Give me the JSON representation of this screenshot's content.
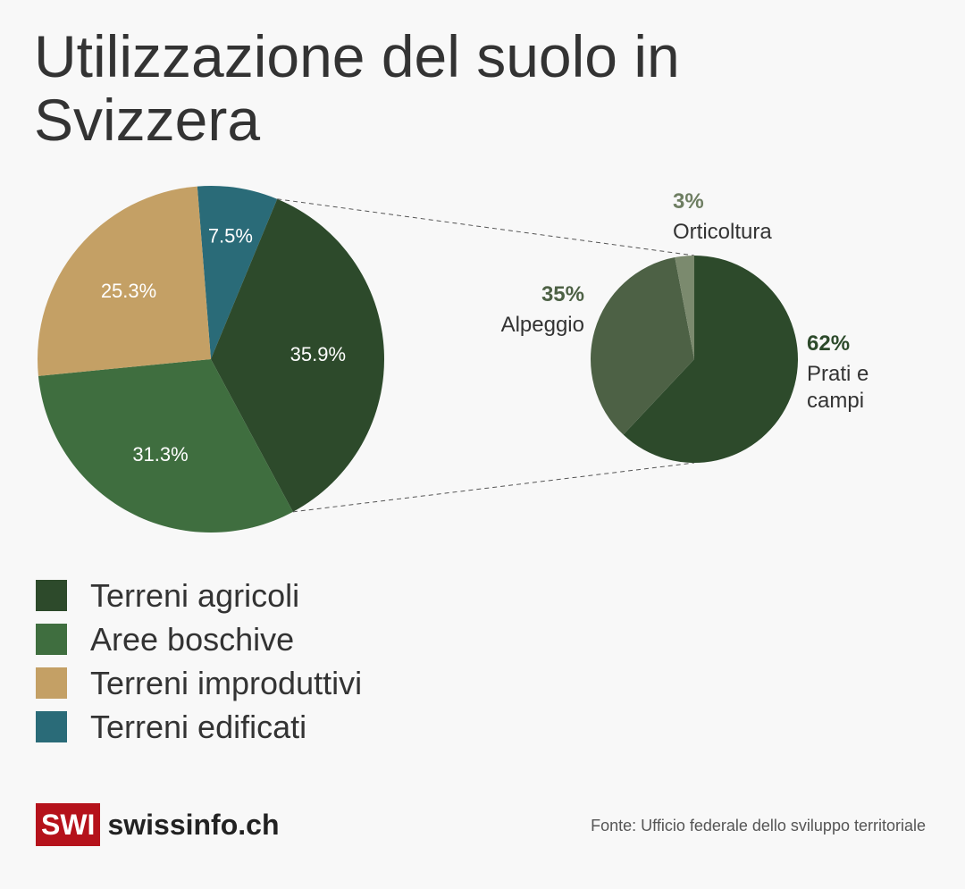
{
  "title": "Utilizzazione del suolo in Svizzera",
  "chart_data": {
    "type": "pie",
    "title": "Utilizzazione del suolo in Svizzera",
    "main": {
      "slices": [
        {
          "name": "Terreni edificati",
          "value": 7.5,
          "label": "7.5%",
          "color": "#2a6b78"
        },
        {
          "name": "Terreni agricoli",
          "value": 35.9,
          "label": "35.9%",
          "color": "#2d4a2b"
        },
        {
          "name": "Aree boschive",
          "value": 31.3,
          "label": "31.3%",
          "color": "#3f6e3f"
        },
        {
          "name": "Terreni improduttivi",
          "value": 25.3,
          "label": "25.3%",
          "color": "#c4a065"
        }
      ]
    },
    "detail": {
      "of": "Terreni agricoli",
      "slices": [
        {
          "name": "Prati e campi",
          "value": 62,
          "label": "62%",
          "color": "#2d4a2b"
        },
        {
          "name": "Alpeggio",
          "value": 35,
          "label": "35%",
          "color": "#4d6145"
        },
        {
          "name": "Orticoltura",
          "value": 3,
          "label": "3%",
          "color": "#7b8a6e"
        }
      ]
    },
    "legend": [
      "Terreni agricoli",
      "Aree boschive",
      "Terreni improduttivi",
      "Terreni edificati"
    ],
    "legend_position": "bottom-left"
  },
  "footer": {
    "logo_mark": "SWI",
    "logo_text": "swissinfo.ch",
    "source": "Fonte: Ufficio federale dello sviluppo territoriale"
  }
}
